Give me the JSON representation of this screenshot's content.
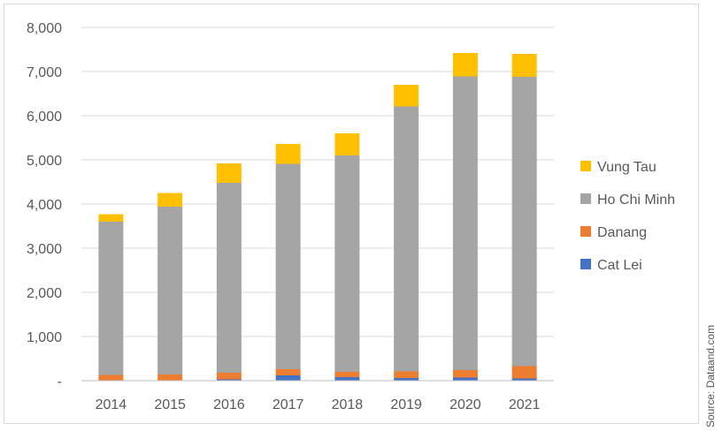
{
  "chart_data": {
    "type": "bar",
    "stacked": true,
    "title": "",
    "xlabel": "",
    "ylabel": "",
    "categories": [
      "2014",
      "2015",
      "2016",
      "2017",
      "2018",
      "2019",
      "2020",
      "2021"
    ],
    "y_ticks": [
      "-",
      "1,000",
      "2,000",
      "3,000",
      "4,000",
      "5,000",
      "6,000",
      "7,000",
      "8,000"
    ],
    "ylim": [
      0,
      8000
    ],
    "grid": true,
    "legend_position": "right",
    "series": [
      {
        "name": "Cat Lei",
        "color": "#4472c4",
        "values": [
          10,
          10,
          30,
          120,
          80,
          60,
          70,
          50
        ]
      },
      {
        "name": "Danang",
        "color": "#ed7d31",
        "values": [
          120,
          130,
          150,
          140,
          120,
          150,
          170,
          280
        ]
      },
      {
        "name": "Ho Chi Minh",
        "color": "#a5a5a5",
        "values": [
          3470,
          3800,
          4300,
          4650,
          4900,
          6000,
          6650,
          6550
        ]
      },
      {
        "name": "Vung Tau",
        "color": "#ffc000",
        "values": [
          170,
          310,
          440,
          450,
          500,
          490,
          530,
          520
        ]
      }
    ],
    "source_note": "Source: Dataand.com"
  }
}
